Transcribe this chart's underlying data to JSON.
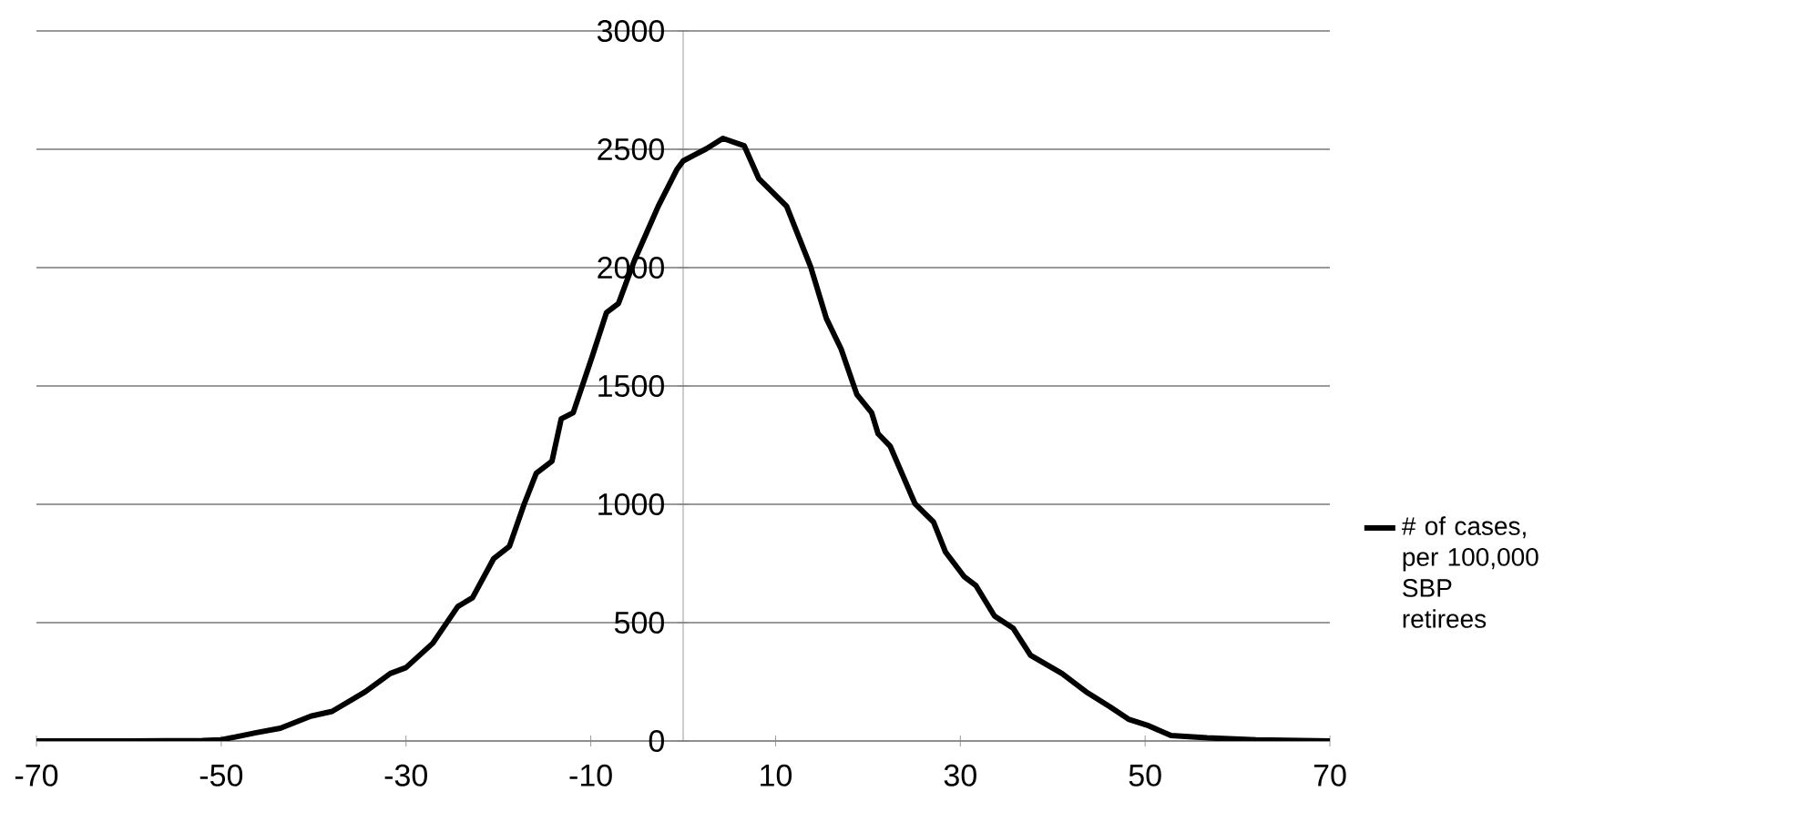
{
  "chart_data": {
    "type": "line",
    "xlim": [
      -70,
      70
    ],
    "ylim": [
      0,
      3000
    ],
    "xticks": [
      -70,
      -50,
      -30,
      -10,
      10,
      30,
      50,
      70
    ],
    "yticks": [
      0,
      500,
      1000,
      1500,
      2000,
      2500,
      3000
    ],
    "grid": "y",
    "legend": "right",
    "marker": "none",
    "line_style": "solid",
    "series": [
      {
        "name": "# of cases, per 100,000 SBP retirees",
        "color": "#000000",
        "x": [
          -70,
          -60,
          -52,
          -50,
          -46.2,
          -43.6,
          -40.3,
          -38,
          -34.4,
          -31.7,
          -30,
          -27.1,
          -24.4,
          -22.8,
          -20.5,
          -18.8,
          -17.2,
          -15.9,
          -14.2,
          -13.2,
          -11.9,
          -9.9,
          -8.3,
          -7,
          -5.3,
          -2.7,
          -0.7,
          0,
          2.5,
          4.3,
          6.6,
          8.2,
          11.2,
          13.8,
          15.5,
          17.1,
          18.8,
          20.4,
          21.1,
          22.4,
          25.1,
          27.1,
          28.4,
          30.4,
          31.7,
          33.7,
          35.7,
          37.6,
          41,
          43.6,
          46.2,
          48.2,
          50.2,
          52.8,
          56.7,
          62,
          70
        ],
        "values": [
          0,
          0,
          2,
          5,
          35,
          54,
          105,
          125,
          208,
          285,
          310,
          413,
          568,
          605,
          771,
          823,
          1002,
          1131,
          1182,
          1361,
          1387,
          1618,
          1810,
          1849,
          2028,
          2259,
          2413,
          2451,
          2502,
          2546,
          2515,
          2375,
          2259,
          2003,
          1785,
          1656,
          1464,
          1387,
          1298,
          1246,
          1002,
          925,
          798,
          695,
          656,
          528,
          477,
          362,
          285,
          208,
          144,
          92,
          67,
          23,
          13,
          5,
          0
        ]
      }
    ]
  }
}
